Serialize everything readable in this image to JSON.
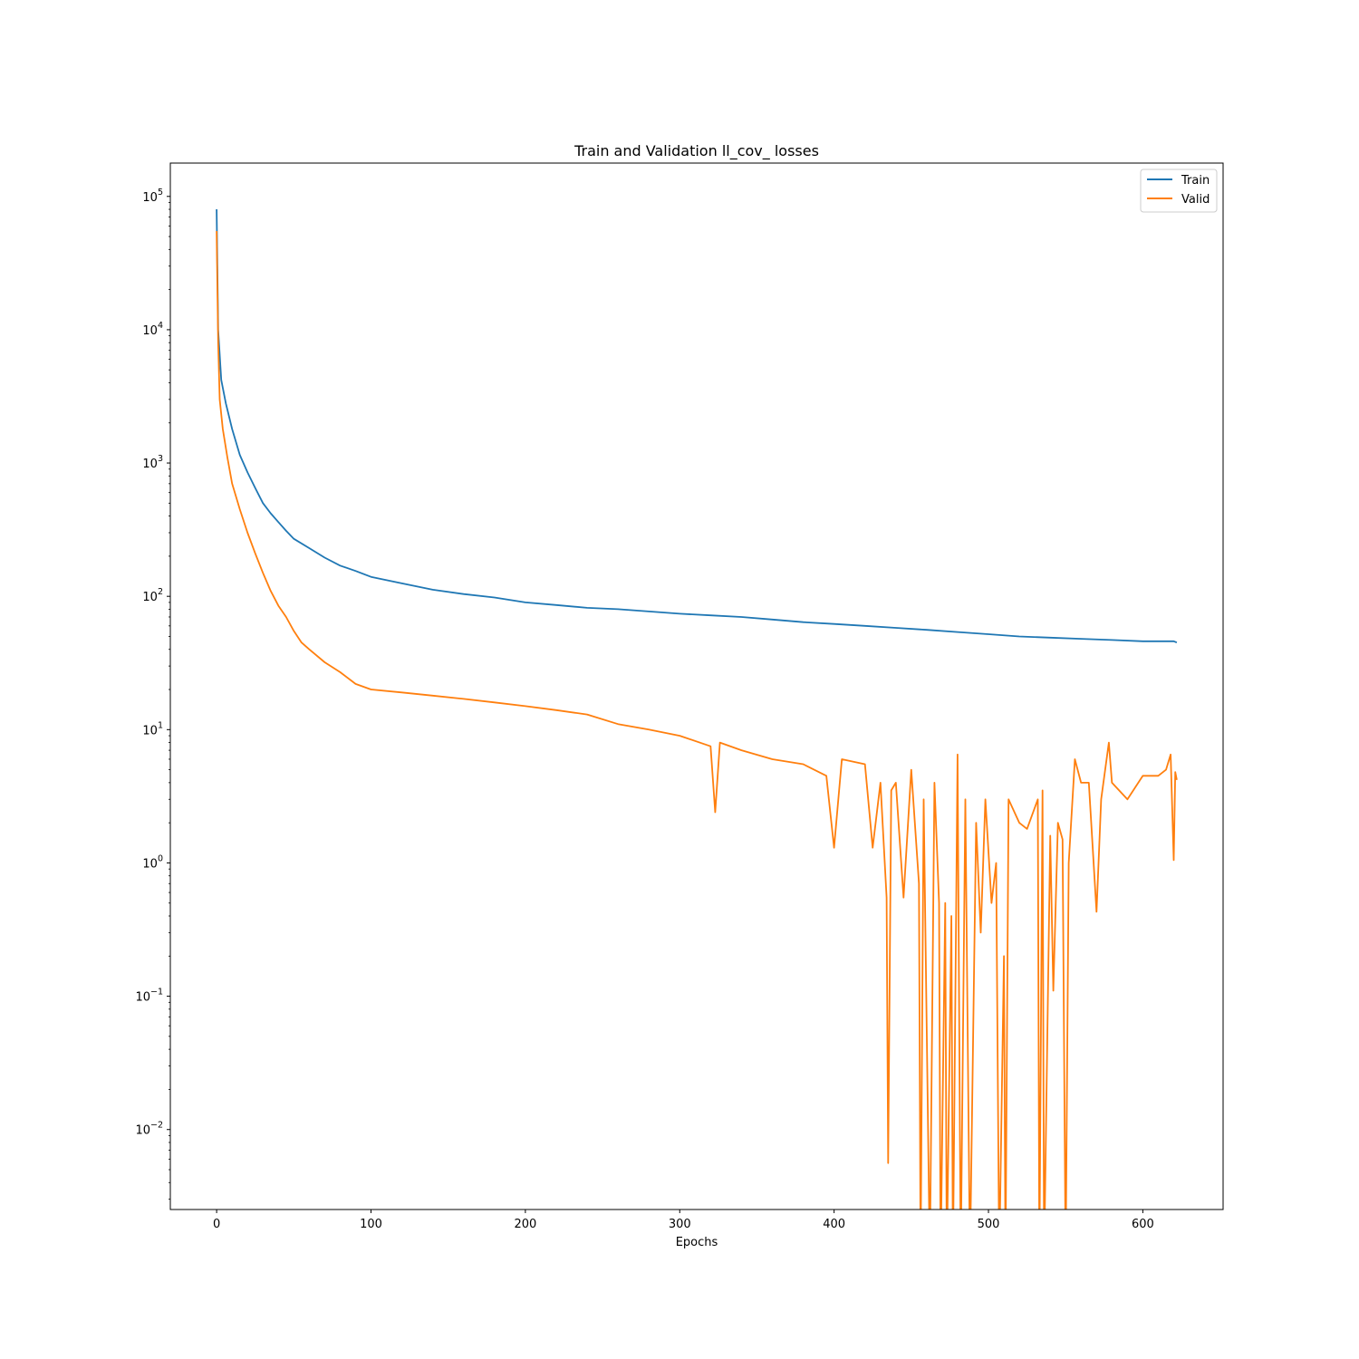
{
  "chart_data": {
    "type": "line",
    "title": "Train and Validation ll_cov_ losses",
    "xlabel": "Epochs",
    "ylabel": "",
    "xlim": [
      -30,
      652
    ],
    "ylim_log10": [
      -2.6,
      5.25
    ],
    "yscale": "log",
    "x_ticks": [
      0,
      100,
      200,
      300,
      400,
      500,
      600
    ],
    "y_ticks": [
      {
        "base": "10",
        "exp": "5"
      },
      {
        "base": "10",
        "exp": "4"
      },
      {
        "base": "10",
        "exp": "3"
      },
      {
        "base": "10",
        "exp": "2"
      },
      {
        "base": "10",
        "exp": "1"
      },
      {
        "base": "10",
        "exp": "0"
      },
      {
        "base": "10",
        "exp": "−1"
      },
      {
        "base": "10",
        "exp": "−2"
      }
    ],
    "legend_position": "top-right",
    "grid": false,
    "series": [
      {
        "name": "Train",
        "color": "#1f77b4",
        "points": [
          [
            0,
            80000
          ],
          [
            1,
            10000
          ],
          [
            3,
            4200
          ],
          [
            6,
            2800
          ],
          [
            10,
            1800
          ],
          [
            15,
            1150
          ],
          [
            20,
            850
          ],
          [
            25,
            650
          ],
          [
            30,
            500
          ],
          [
            35,
            420
          ],
          [
            40,
            360
          ],
          [
            45,
            310
          ],
          [
            50,
            270
          ],
          [
            60,
            230
          ],
          [
            70,
            195
          ],
          [
            80,
            170
          ],
          [
            90,
            155
          ],
          [
            100,
            140
          ],
          [
            120,
            125
          ],
          [
            140,
            112
          ],
          [
            160,
            104
          ],
          [
            180,
            98
          ],
          [
            200,
            90
          ],
          [
            220,
            86
          ],
          [
            240,
            82
          ],
          [
            260,
            80
          ],
          [
            280,
            77
          ],
          [
            300,
            74
          ],
          [
            320,
            72
          ],
          [
            340,
            70
          ],
          [
            360,
            67
          ],
          [
            380,
            64
          ],
          [
            400,
            62
          ],
          [
            420,
            60
          ],
          [
            440,
            58
          ],
          [
            460,
            56
          ],
          [
            480,
            54
          ],
          [
            500,
            52
          ],
          [
            520,
            50
          ],
          [
            540,
            49
          ],
          [
            560,
            48
          ],
          [
            580,
            47
          ],
          [
            600,
            46
          ],
          [
            620,
            46
          ],
          [
            622,
            45
          ]
        ]
      },
      {
        "name": "Valid",
        "color": "#ff7f0e",
        "points": [
          [
            0,
            55000
          ],
          [
            1,
            8000
          ],
          [
            2,
            3000
          ],
          [
            4,
            1800
          ],
          [
            7,
            1100
          ],
          [
            10,
            700
          ],
          [
            15,
            450
          ],
          [
            20,
            300
          ],
          [
            25,
            210
          ],
          [
            30,
            150
          ],
          [
            35,
            110
          ],
          [
            40,
            85
          ],
          [
            45,
            70
          ],
          [
            50,
            55
          ],
          [
            55,
            45
          ],
          [
            60,
            40
          ],
          [
            70,
            32
          ],
          [
            80,
            27
          ],
          [
            90,
            22
          ],
          [
            100,
            20
          ],
          [
            120,
            19
          ],
          [
            140,
            18
          ],
          [
            160,
            17
          ],
          [
            180,
            16
          ],
          [
            200,
            15
          ],
          [
            220,
            14
          ],
          [
            240,
            13
          ],
          [
            260,
            11
          ],
          [
            280,
            10
          ],
          [
            300,
            9
          ],
          [
            320,
            7.5
          ],
          [
            323,
            2.4
          ],
          [
            326,
            8
          ],
          [
            340,
            7
          ],
          [
            360,
            6
          ],
          [
            380,
            5.5
          ],
          [
            395,
            4.5
          ],
          [
            400,
            1.3
          ],
          [
            405,
            6
          ],
          [
            420,
            5.5
          ],
          [
            425,
            1.3
          ],
          [
            430,
            4
          ],
          [
            434,
            0.55
          ],
          [
            435,
            0.0056
          ],
          [
            437,
            3.5
          ],
          [
            440,
            4
          ],
          [
            445,
            0.55
          ],
          [
            450,
            5
          ],
          [
            455,
            0.7
          ],
          [
            456,
            0.001
          ],
          [
            458,
            3
          ],
          [
            462,
            0.001
          ],
          [
            465,
            4
          ],
          [
            468,
            0.5
          ],
          [
            469,
            0.001
          ],
          [
            472,
            0.5
          ],
          [
            473,
            0.001
          ],
          [
            476,
            0.4
          ],
          [
            477,
            0.001
          ],
          [
            480,
            6.5
          ],
          [
            482,
            0.001
          ],
          [
            485,
            3
          ],
          [
            488,
            0.001
          ],
          [
            492,
            2
          ],
          [
            495,
            0.3
          ],
          [
            498,
            3
          ],
          [
            502,
            0.5
          ],
          [
            505,
            1
          ],
          [
            507,
            0.001
          ],
          [
            510,
            0.2
          ],
          [
            511,
            0.001
          ],
          [
            513,
            3
          ],
          [
            520,
            2
          ],
          [
            525,
            1.8
          ],
          [
            532,
            3
          ],
          [
            533,
            0.001
          ],
          [
            535,
            3.5
          ],
          [
            536,
            0.001
          ],
          [
            540,
            1.6
          ],
          [
            542,
            0.11
          ],
          [
            545,
            2
          ],
          [
            548,
            1.5
          ],
          [
            550,
            0.001
          ],
          [
            552,
            1
          ],
          [
            556,
            6
          ],
          [
            560,
            4
          ],
          [
            565,
            4
          ],
          [
            570,
            0.43
          ],
          [
            573,
            3
          ],
          [
            578,
            8
          ],
          [
            580,
            4
          ],
          [
            590,
            3
          ],
          [
            600,
            4.5
          ],
          [
            610,
            4.5
          ],
          [
            615,
            5
          ],
          [
            618,
            6.5
          ],
          [
            620,
            1.05
          ],
          [
            621,
            4.8
          ],
          [
            622,
            4.2
          ]
        ]
      }
    ]
  }
}
